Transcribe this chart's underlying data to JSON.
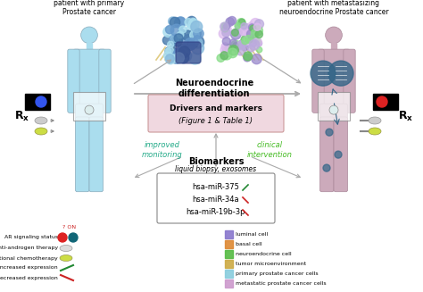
{
  "bg_color": "#ffffff",
  "title_left": "patient with primary\nProstate cancer",
  "title_right": "patient with metastasizing\nneuroendocrine Prostate cancer",
  "neuroendocrine_label": "Neuroendocrine\ndifferentiation",
  "drivers_label": "Drivers and markers",
  "drivers_label2": "(Figure 1 & Table 1)",
  "drivers_box_color": "#f0d8e0",
  "improved_monitoring": "improved\nmonitoring",
  "clinical_intervention": "clinical\nintervention",
  "improved_color": "#22aa88",
  "clinical_color": "#44bb22",
  "biomarkers_title": "Biomarkers",
  "biomarkers_subtitle": "liquid biopsy, exosomes",
  "mirna_list": [
    "hsa-miR-375",
    "hsa-miR-34a",
    "hsa-miR-19b-3p"
  ],
  "mirna_up_color": "#228833",
  "mirna_down_color": "#cc2222",
  "legend_left_items": [
    "AR signaling status",
    "anti-androgen therapy",
    "conventional chemotherapy",
    "increased expression",
    "decreased expression"
  ],
  "legend_right_items": [
    "luminal cell",
    "basal cell",
    "neuroendocrine cell",
    "tumor microenvironment",
    "primary prostate cancer cells",
    "metastatic prostate cancer cells"
  ],
  "legend_right_colors": [
    "#8877cc",
    "#dd8833",
    "#55bb44",
    "#ccaa44",
    "#88ccdd",
    "#cc99cc"
  ],
  "left_body_color": "#aaddee",
  "left_body_edge": "#88aabb",
  "right_body_color": "#ccaabb",
  "right_body_edge": "#aa8899",
  "arrow_color": "#aaaaaa",
  "rx_color_left": "#3355ee",
  "rx_color_right": "#dd2222",
  "lung_color": "#336688",
  "prostate_box_color": "#ddeeee"
}
